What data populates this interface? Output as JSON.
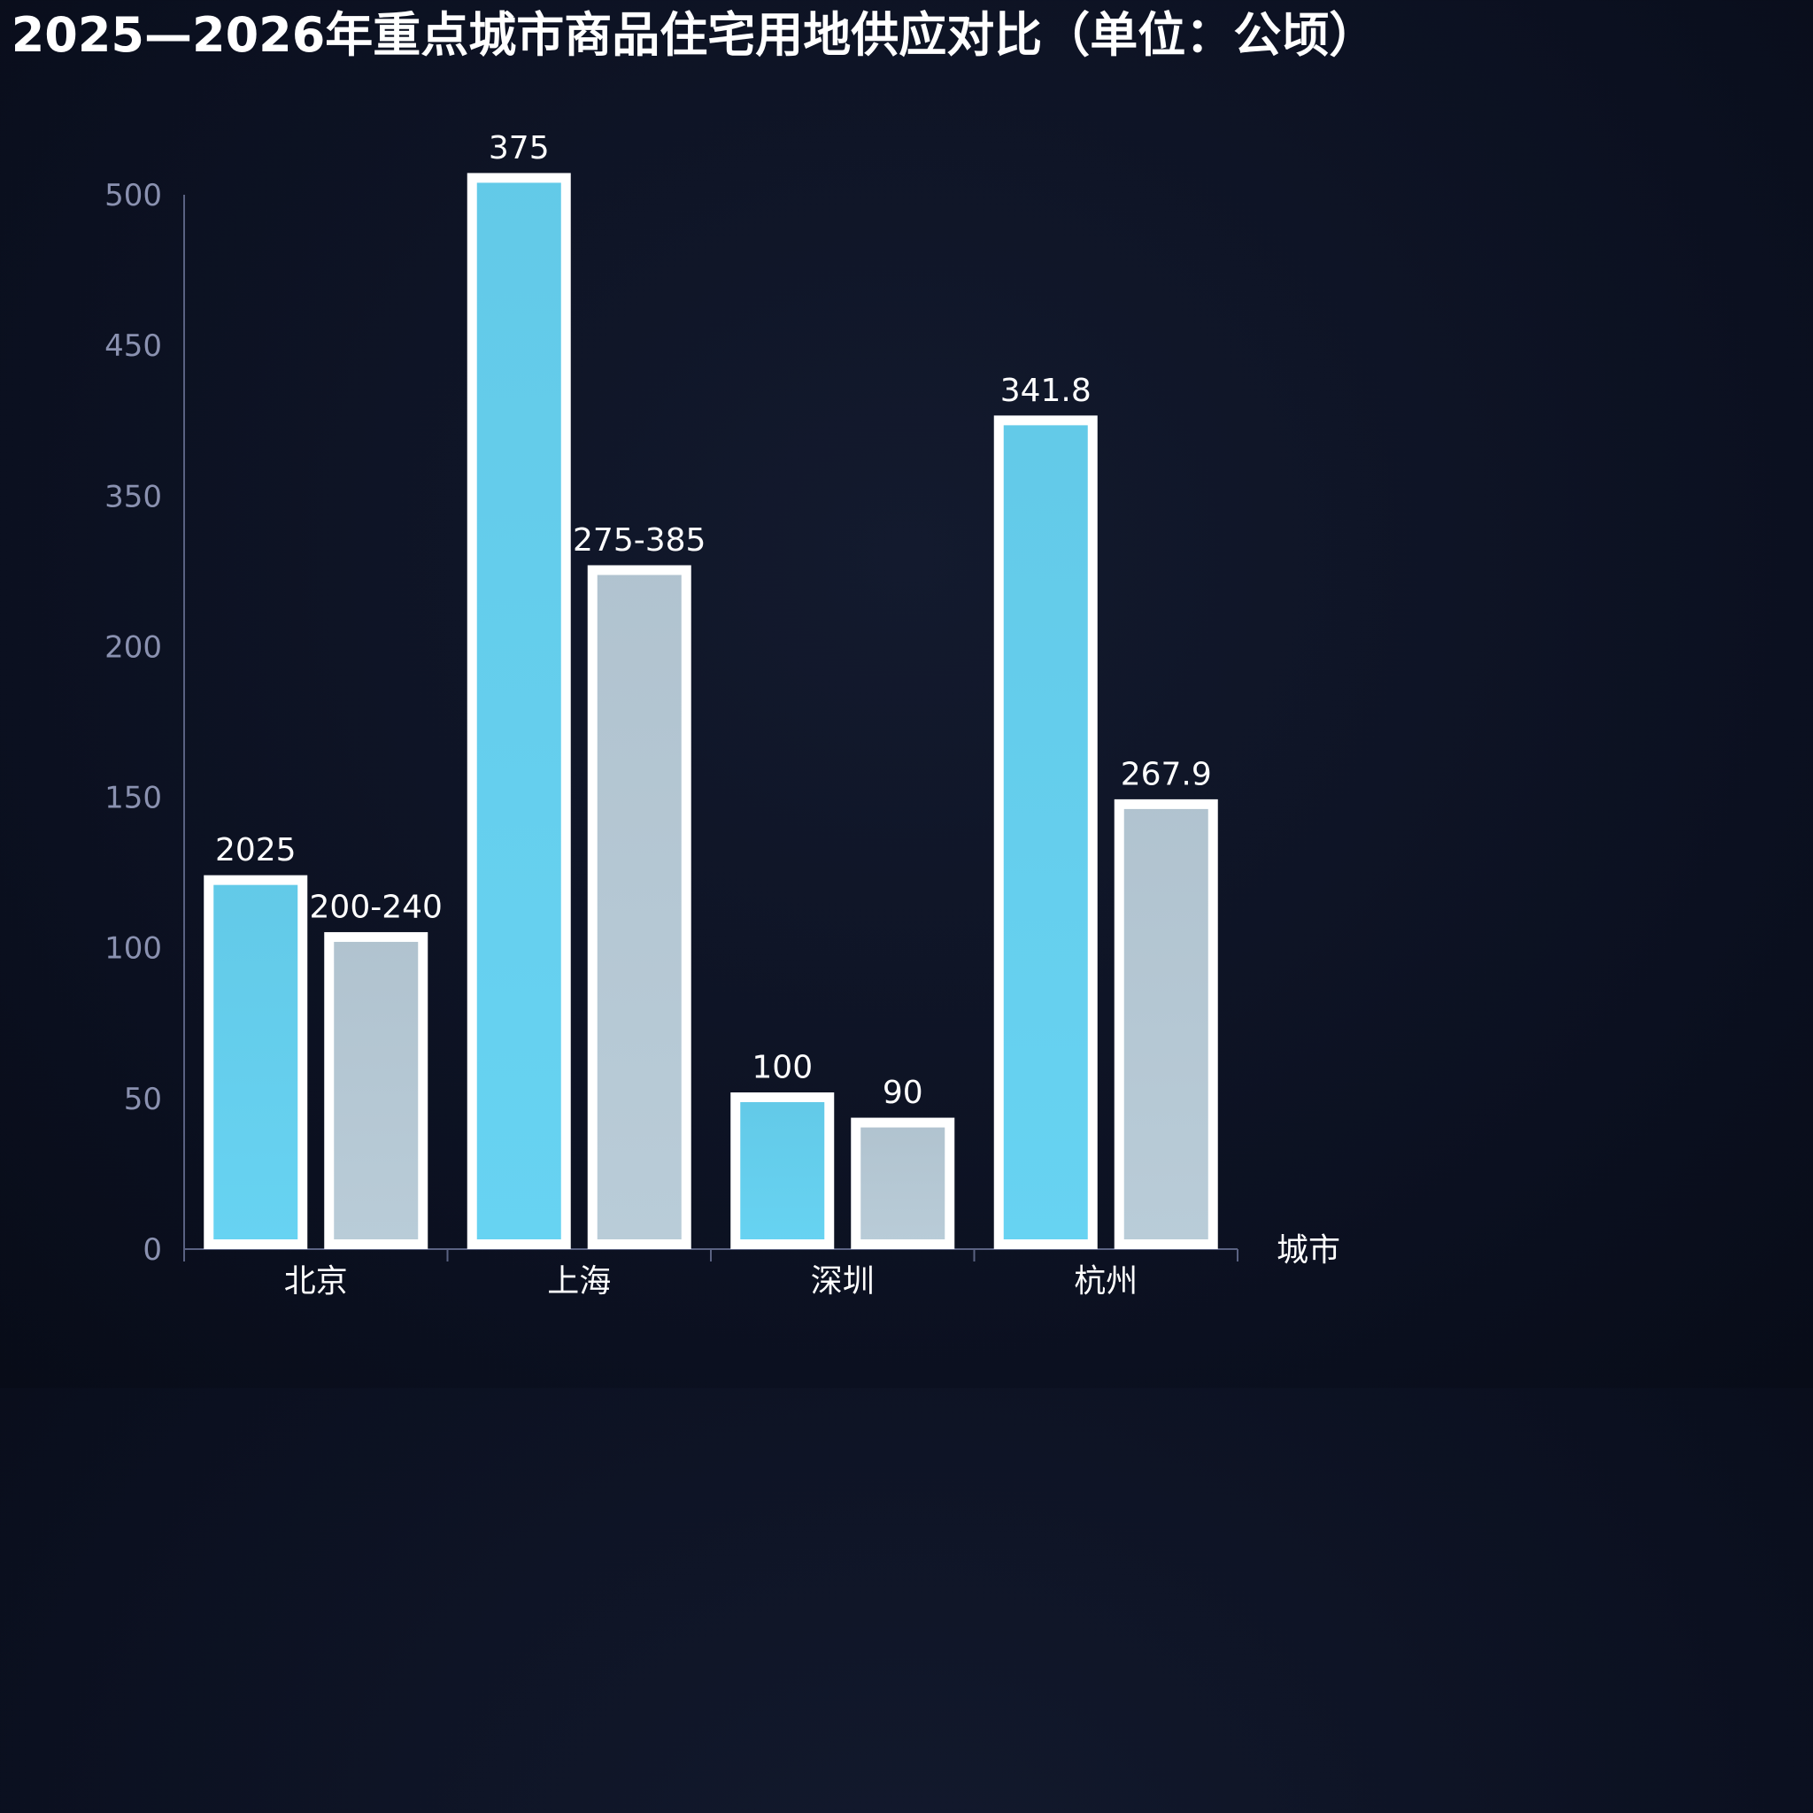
{
  "chart_data": {
    "type": "bar",
    "title": "2025—2026年重点城市商品住宅用地供应对比（单位：公顷）",
    "xlabel": "城市",
    "ylabel": "",
    "ylim": [
      0,
      500
    ],
    "yticks": [
      "0",
      "50",
      "100",
      "150",
      "200",
      "350",
      "450",
      "500"
    ],
    "categories": [
      "北京",
      "上海",
      "深圳",
      "杭州"
    ],
    "series": [
      {
        "values": [
          175,
          508,
          72,
          393
        ],
        "labels": [
          "2025",
          "375",
          "100",
          "341.8"
        ],
        "color": "#67d3f2"
      },
      {
        "values": [
          148,
          322,
          60,
          211
        ],
        "labels": [
          "200-240",
          "275-385",
          "90",
          "267.9"
        ],
        "color": "#b9ccd8"
      }
    ],
    "grid": false,
    "legend": "none"
  },
  "colors": {
    "background": "#0b1020",
    "axis": "#5a6282",
    "bar_border": "#ffffff"
  }
}
